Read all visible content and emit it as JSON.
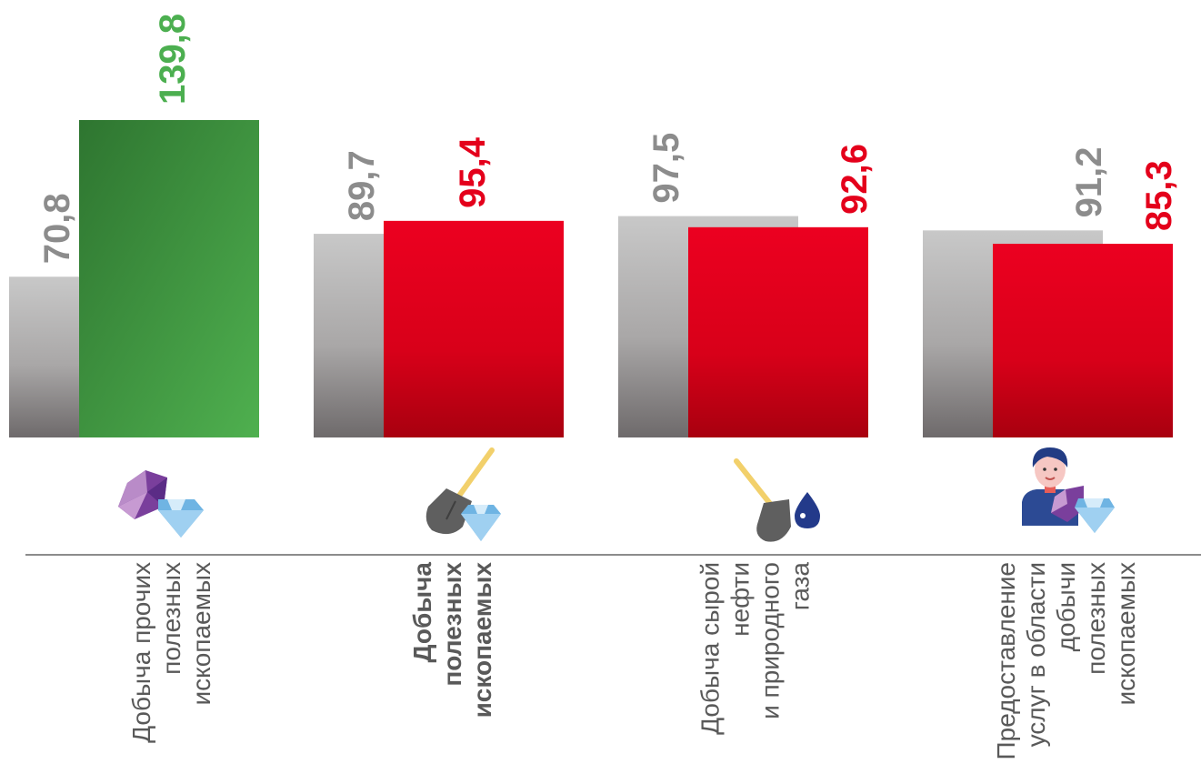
{
  "chart_data": {
    "type": "bar",
    "categories": [
      {
        "lines": [
          "Добыча прочих",
          "полезных",
          "ископаемых"
        ],
        "bold": false
      },
      {
        "lines": [
          "Добыча",
          "полезных",
          "ископаемых"
        ],
        "bold": true
      },
      {
        "lines": [
          "Добыча сырой",
          "нефти",
          "и природного",
          "газа"
        ],
        "bold": false
      },
      {
        "lines": [
          "Предоставление",
          "услуг в области",
          "добычи",
          "полезных",
          "ископаемых"
        ],
        "bold": false
      }
    ],
    "series": [
      {
        "values": [
          70.8,
          89.7,
          97.5,
          91.2
        ],
        "labels": [
          "70,8",
          "89,7",
          "97,5",
          "91,2"
        ],
        "color": "#8c8c8c"
      },
      {
        "values": [
          139.8,
          95.4,
          92.6,
          85.3
        ],
        "labels": [
          "139,8",
          "95,4",
          "92,6",
          "85,3"
        ],
        "colors": [
          "#3f9a3f",
          "#e4001b",
          "#e4001b",
          "#e4001b"
        ]
      }
    ],
    "ylim": [
      0,
      140
    ],
    "legend": false,
    "grid": false
  },
  "icons": [
    "gems-icon",
    "shovel-diamond-icon",
    "shovel-oil-drop-icon",
    "worker-gems-icon"
  ],
  "colors": {
    "gray_label": "#8c8c8c",
    "red": "#e4001b",
    "green": "#4caf50",
    "green_dark": "#2e7d32",
    "axis": "#8c8c8c"
  }
}
